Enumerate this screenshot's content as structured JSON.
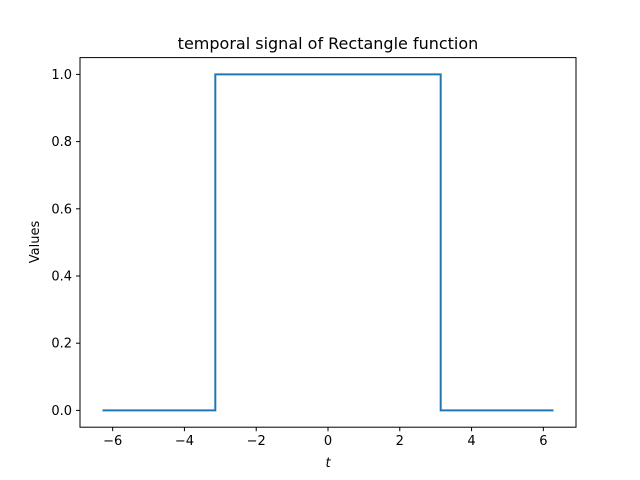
{
  "chart_data": {
    "type": "line",
    "title": "temporal signal of Rectangle function",
    "xlabel": "t",
    "ylabel": "Values",
    "xlim": [
      -6.91,
      6.91
    ],
    "ylim": [
      -0.05,
      1.05
    ],
    "xticks": [
      -6,
      -4,
      -2,
      0,
      2,
      4,
      6
    ],
    "xtick_labels": [
      "−6",
      "−4",
      "−2",
      "0",
      "2",
      "4",
      "6"
    ],
    "yticks": [
      0.0,
      0.2,
      0.4,
      0.6,
      0.8,
      1.0
    ],
    "ytick_labels": [
      "0.0",
      "0.2",
      "0.4",
      "0.6",
      "0.8",
      "1.0"
    ],
    "grid": false,
    "series": [
      {
        "color": "#1f77b4",
        "x": [
          -6.283,
          -3.14,
          -3.14,
          3.14,
          3.14,
          6.283
        ],
        "y": [
          0,
          0,
          1,
          1,
          0,
          0
        ]
      }
    ]
  }
}
